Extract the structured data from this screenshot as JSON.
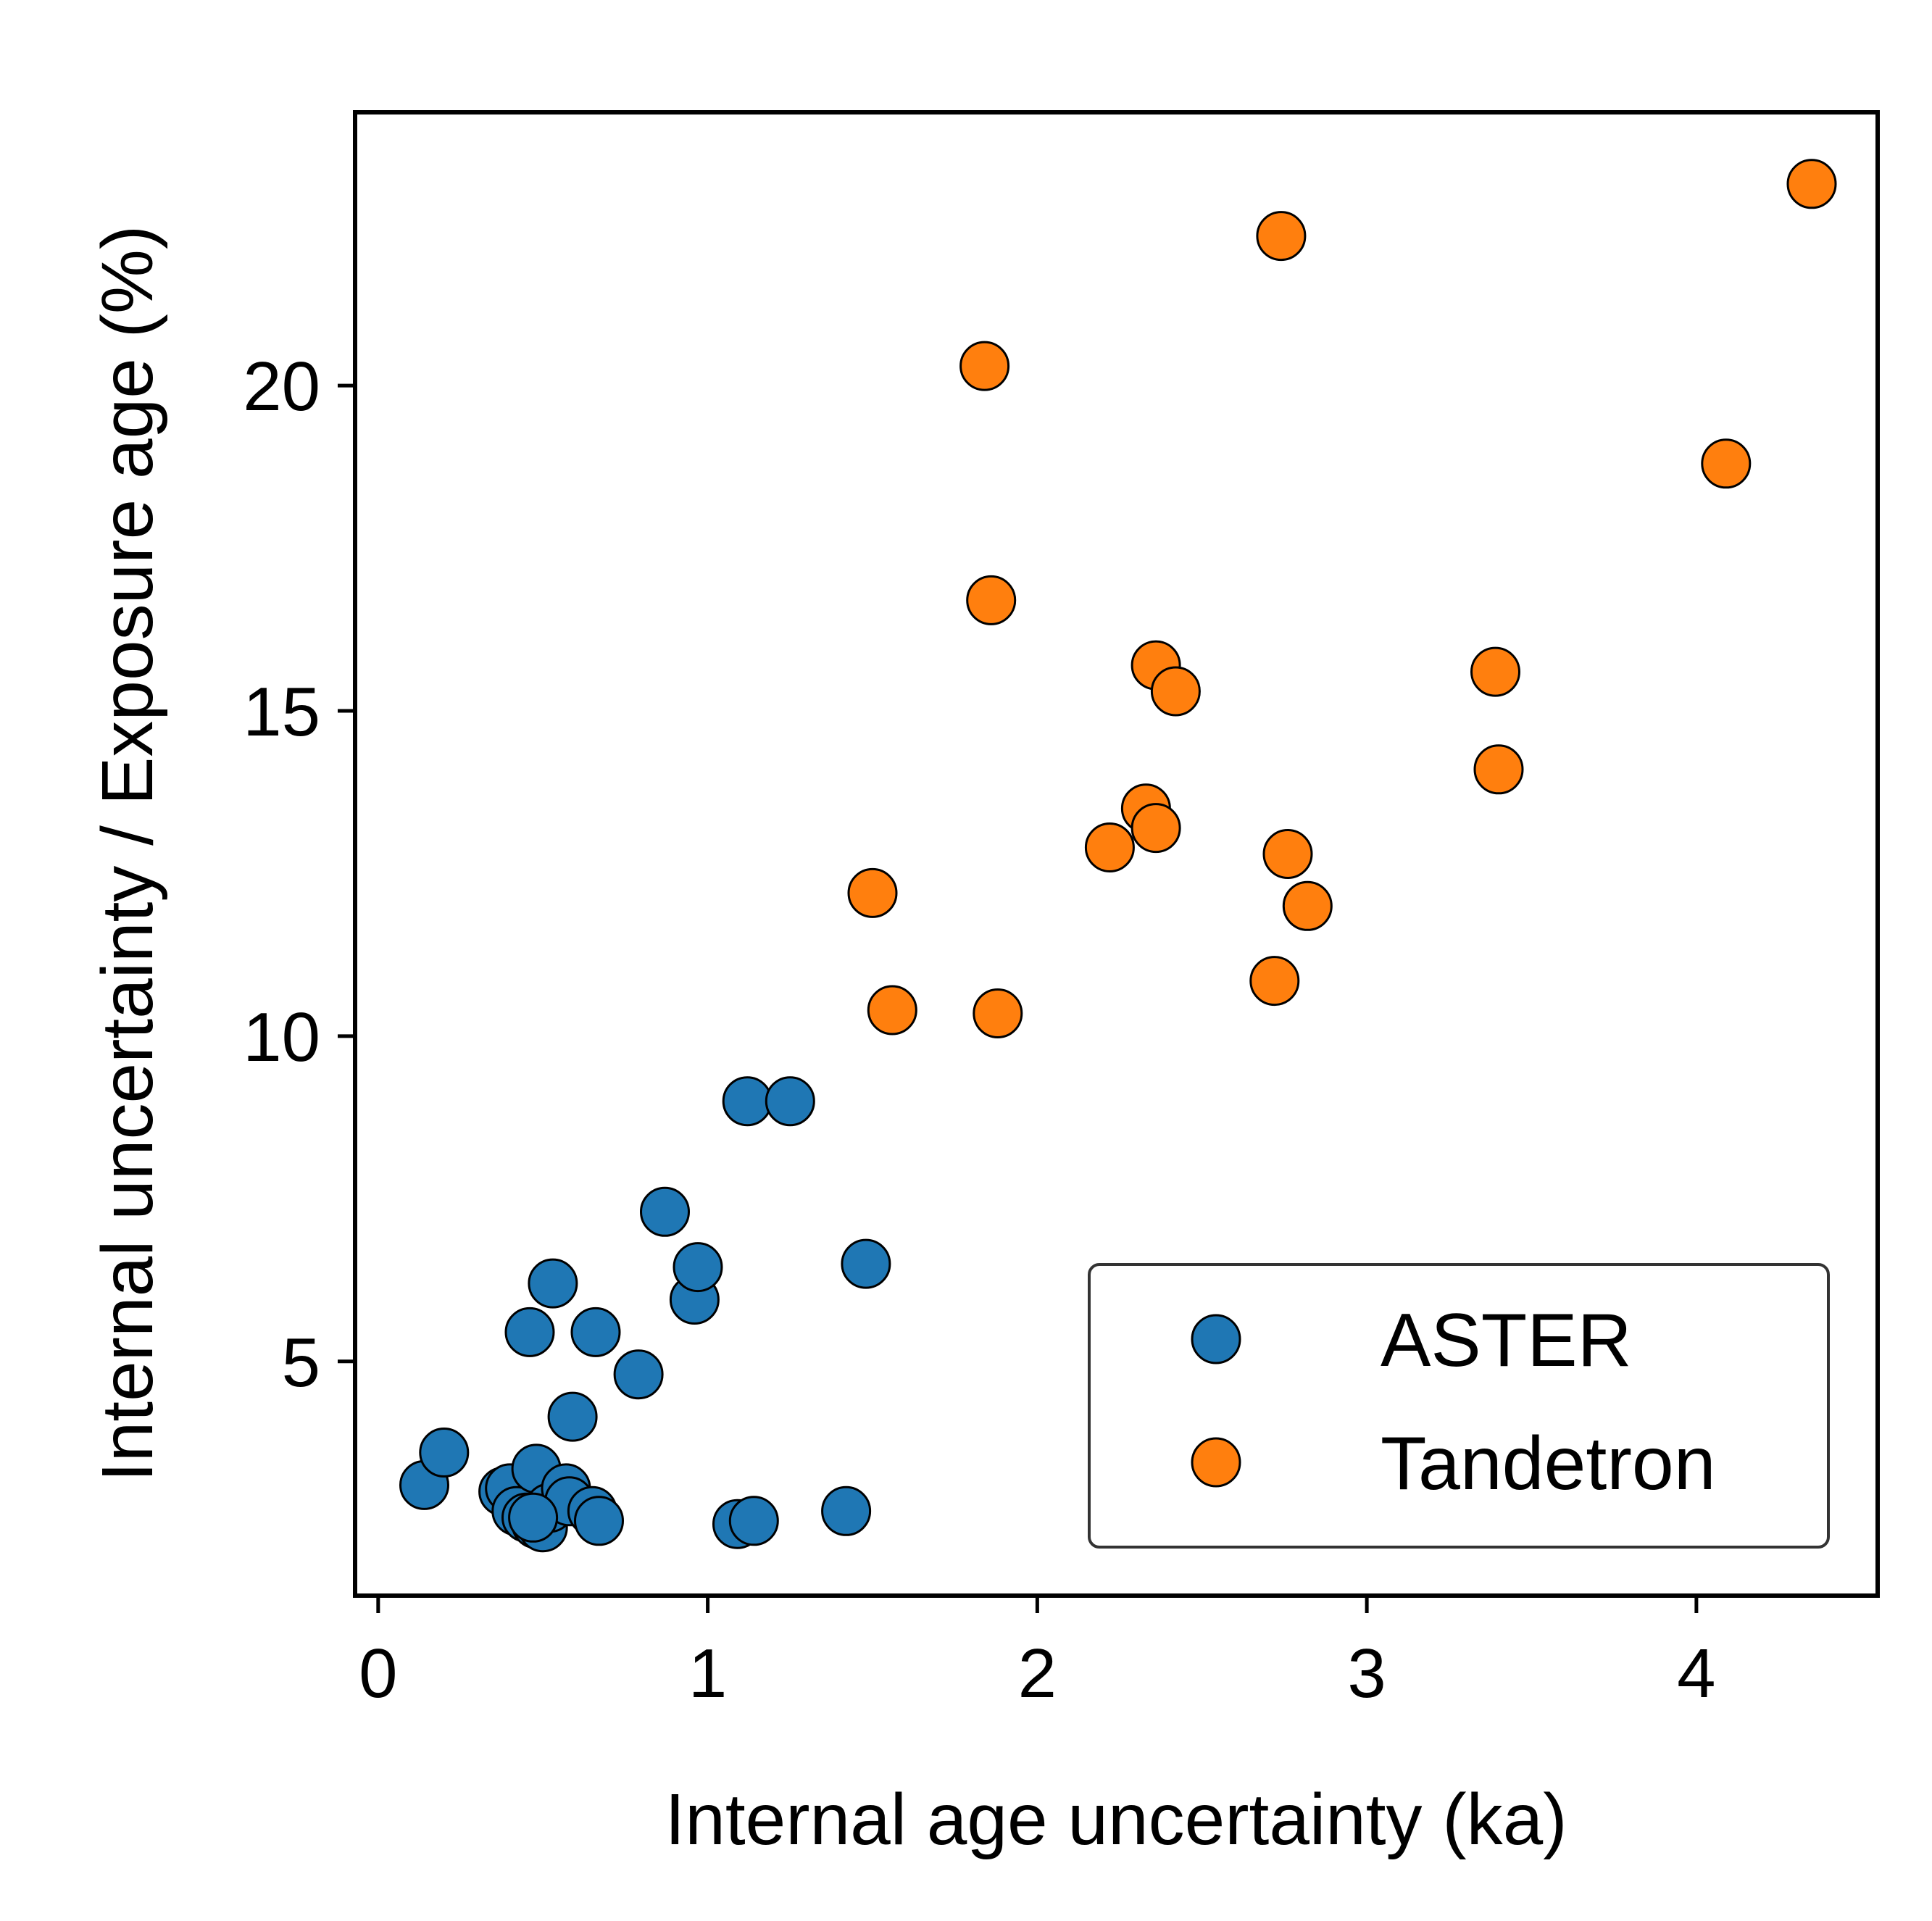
{
  "chart_data": {
    "type": "scatter",
    "title": "",
    "xlabel": "Internal age uncertainty (ka)",
    "ylabel": "Internal uncertainty / Exposure age (%)",
    "xlim": [
      -0.07,
      4.55
    ],
    "ylim": [
      1.4,
      24.2
    ],
    "xticks": [
      0,
      1,
      2,
      3,
      4
    ],
    "yticks": [
      5,
      10,
      15,
      20
    ],
    "grid": false,
    "legend_position": "lower-right",
    "series": [
      {
        "name": "ASTER",
        "color": "#1f77b4",
        "points": [
          [
            0.14,
            3.1
          ],
          [
            0.2,
            3.6
          ],
          [
            0.38,
            3.0
          ],
          [
            0.4,
            3.05
          ],
          [
            0.42,
            2.7
          ],
          [
            0.45,
            2.6
          ],
          [
            0.46,
            5.45
          ],
          [
            0.48,
            3.35
          ],
          [
            0.48,
            2.5
          ],
          [
            0.5,
            2.45
          ],
          [
            0.52,
            2.75
          ],
          [
            0.53,
            6.2
          ],
          [
            0.57,
            3.05
          ],
          [
            0.58,
            2.85
          ],
          [
            0.59,
            4.15
          ],
          [
            0.65,
            2.7
          ],
          [
            0.66,
            5.45
          ],
          [
            0.67,
            2.55
          ],
          [
            0.79,
            4.8
          ],
          [
            0.87,
            7.3
          ],
          [
            0.96,
            5.95
          ],
          [
            0.97,
            6.45
          ],
          [
            1.09,
            2.5
          ],
          [
            1.14,
            2.55
          ],
          [
            1.12,
            9.0
          ],
          [
            1.25,
            9.0
          ],
          [
            1.42,
            2.7
          ],
          [
            1.48,
            6.5
          ],
          [
            0.47,
            2.6
          ]
        ]
      },
      {
        "name": "Tandetron",
        "color": "#ff7f0e",
        "points": [
          [
            1.5,
            12.2
          ],
          [
            1.56,
            10.4
          ],
          [
            1.84,
            20.3
          ],
          [
            1.86,
            16.7
          ],
          [
            1.88,
            10.35
          ],
          [
            2.22,
            12.9
          ],
          [
            2.33,
            13.5
          ],
          [
            2.36,
            13.2
          ],
          [
            2.36,
            15.7
          ],
          [
            2.42,
            15.3
          ],
          [
            2.72,
            10.85
          ],
          [
            2.74,
            22.3
          ],
          [
            2.76,
            12.8
          ],
          [
            2.82,
            12.0
          ],
          [
            3.39,
            15.6
          ],
          [
            3.4,
            14.1
          ],
          [
            4.09,
            18.8
          ],
          [
            4.35,
            23.1
          ]
        ]
      }
    ]
  }
}
